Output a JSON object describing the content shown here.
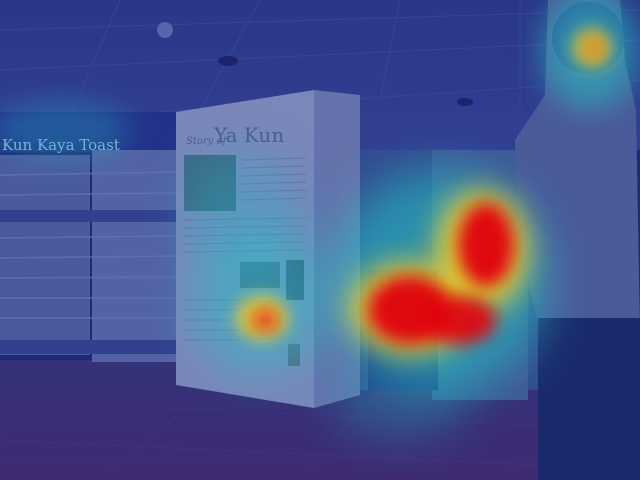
{
  "image": {
    "description_type": "attention-heatmap-overlay",
    "shopfront_sign": "Kun Kaya Toast",
    "panel_heading_small": "Story of",
    "panel_heading_large": "Ya Kun"
  },
  "colors": {
    "base_tint": "#2a3a8a",
    "ceiling": "#34408c",
    "floor": "#3a2f6e",
    "hot": "#e00010",
    "warm": "#ffd21e",
    "cool": "#24c8c8"
  }
}
